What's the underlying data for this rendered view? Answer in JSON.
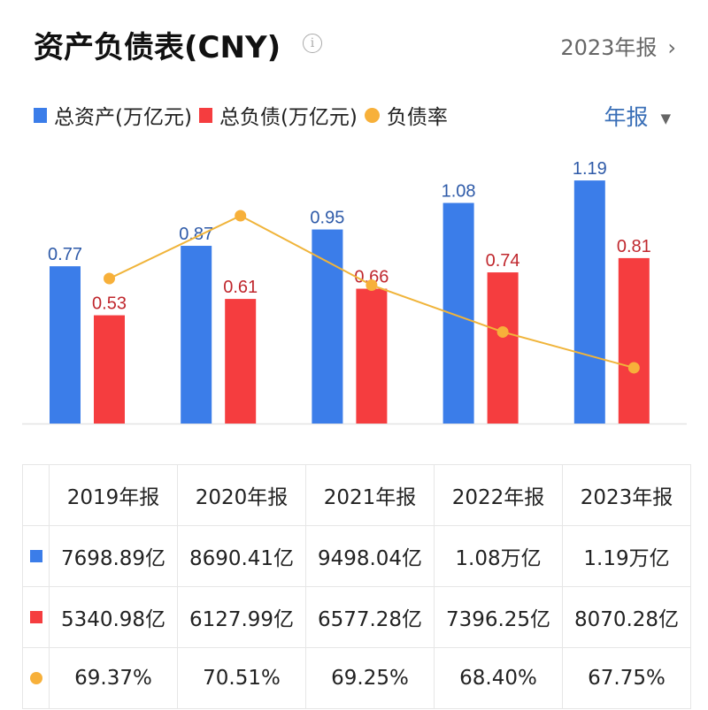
{
  "header": {
    "title": "资产负债表(CNY)",
    "info_icon": "info-icon",
    "period": "2023年报"
  },
  "legend": [
    {
      "label": "总资产(万亿元)",
      "color": "#3b7de9"
    },
    {
      "label": "总负债(万亿元)",
      "color": "#f53d3f"
    },
    {
      "label": "负债率",
      "color": "#f7b03a"
    }
  ],
  "report_type": "年报",
  "chart_data": {
    "type": "bar",
    "categories": [
      "2019年报",
      "2020年报",
      "2021年报",
      "2022年报",
      "2023年报"
    ],
    "series": [
      {
        "name": "总资产(万亿元)",
        "type": "bar",
        "color": "#3b7de9",
        "label_color": "#2e5aa8",
        "values": [
          0.77,
          0.87,
          0.95,
          1.08,
          1.19
        ],
        "labels": [
          "0.77",
          "0.87",
          "0.95",
          "1.08",
          "1.19"
        ]
      },
      {
        "name": "总负债(万亿元)",
        "type": "bar",
        "color": "#f53d3f",
        "label_color": "#c0282e",
        "values": [
          0.53,
          0.61,
          0.66,
          0.74,
          0.81
        ],
        "labels": [
          "0.53",
          "0.61",
          "0.66",
          "0.74",
          "0.81"
        ]
      },
      {
        "name": "负债率",
        "type": "line",
        "color": "#f7b03a",
        "values": [
          69.37,
          70.51,
          69.25,
          68.4,
          67.75
        ]
      }
    ],
    "grid": false
  },
  "table": {
    "headers": [
      "2019年报",
      "2020年报",
      "2021年报",
      "2022年报",
      "2023年报"
    ],
    "rows": [
      {
        "color": "#3b7de9",
        "shape": "square",
        "values": [
          "7698.89亿",
          "8690.41亿",
          "9498.04亿",
          "1.08万亿",
          "1.19万亿"
        ]
      },
      {
        "color": "#f53d3f",
        "shape": "square",
        "values": [
          "5340.98亿",
          "6127.99亿",
          "6577.28亿",
          "7396.25亿",
          "8070.28亿"
        ]
      },
      {
        "color": "#f7b03a",
        "shape": "circle",
        "values": [
          "69.37%",
          "70.51%",
          "69.25%",
          "68.40%",
          "67.75%"
        ]
      }
    ]
  }
}
